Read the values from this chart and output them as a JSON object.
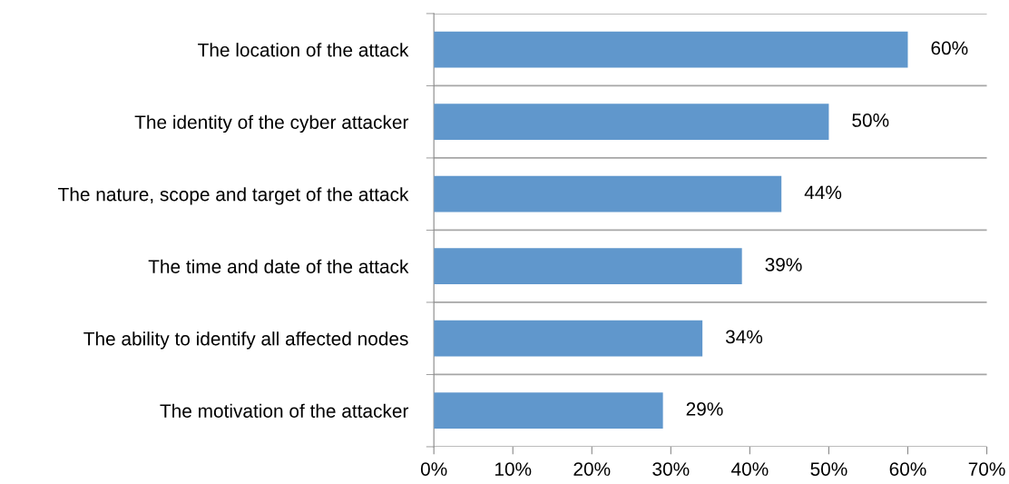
{
  "chart_data": {
    "type": "bar",
    "orientation": "horizontal",
    "categories": [
      "The location of the attack",
      "The identity of the cyber attacker",
      "The nature, scope and target of the attack",
      "The time and date of the attack",
      "The ability to identify all affected nodes",
      "The motivation of the attacker"
    ],
    "values": [
      60,
      50,
      44,
      39,
      34,
      29
    ],
    "value_labels": [
      "60%",
      "50%",
      "44%",
      "39%",
      "34%",
      "29%"
    ],
    "color": "#6097cc",
    "xlim": [
      0,
      70
    ],
    "xticks": [
      {
        "value": 0,
        "label": "0%"
      },
      {
        "value": 10,
        "label": "10%"
      },
      {
        "value": 20,
        "label": "20%"
      },
      {
        "value": 30,
        "label": "30%"
      },
      {
        "value": 40,
        "label": "40%"
      },
      {
        "value": 50,
        "label": "50%"
      },
      {
        "value": 60,
        "label": "60%"
      },
      {
        "value": 70,
        "label": "70%"
      }
    ],
    "grid": "y",
    "legend": false
  }
}
